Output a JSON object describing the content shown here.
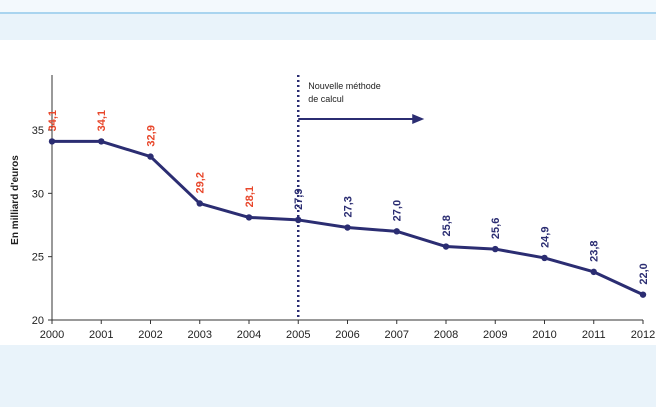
{
  "chart_data": {
    "type": "line",
    "title": "",
    "xlabel": "",
    "ylabel": "En milliard d'euros",
    "x": [
      "2000",
      "2001",
      "2002",
      "2003",
      "2004",
      "2005",
      "2006",
      "2007",
      "2008",
      "2009",
      "2010",
      "2011",
      "2012"
    ],
    "values": [
      34.1,
      34.1,
      32.9,
      29.2,
      28.1,
      27.9,
      27.3,
      27.0,
      25.8,
      25.6,
      24.9,
      23.8,
      22.0
    ],
    "labels": [
      "34,1",
      "34,1",
      "32,9",
      "29,2",
      "28,1",
      "27,9",
      "27,3",
      "27,0",
      "25,8",
      "25,6",
      "24,9",
      "23,8",
      "22,0"
    ],
    "label_colors": [
      "#e8462a",
      "#e8462a",
      "#e8462a",
      "#e8462a",
      "#e8462a",
      "#2b2d72",
      "#2b2d72",
      "#2b2d72",
      "#2b2d72",
      "#2b2d72",
      "#2b2d72",
      "#2b2d72",
      "#2b2d72"
    ],
    "ylim": [
      20,
      35
    ],
    "yticks": [
      20,
      25,
      30,
      35
    ],
    "line_color": "#2b2d72",
    "grid": false,
    "annotation": {
      "text_line1": "Nouvelle méthode",
      "text_line2": "de calcul",
      "at_x": "2005",
      "arrow": "right"
    }
  }
}
